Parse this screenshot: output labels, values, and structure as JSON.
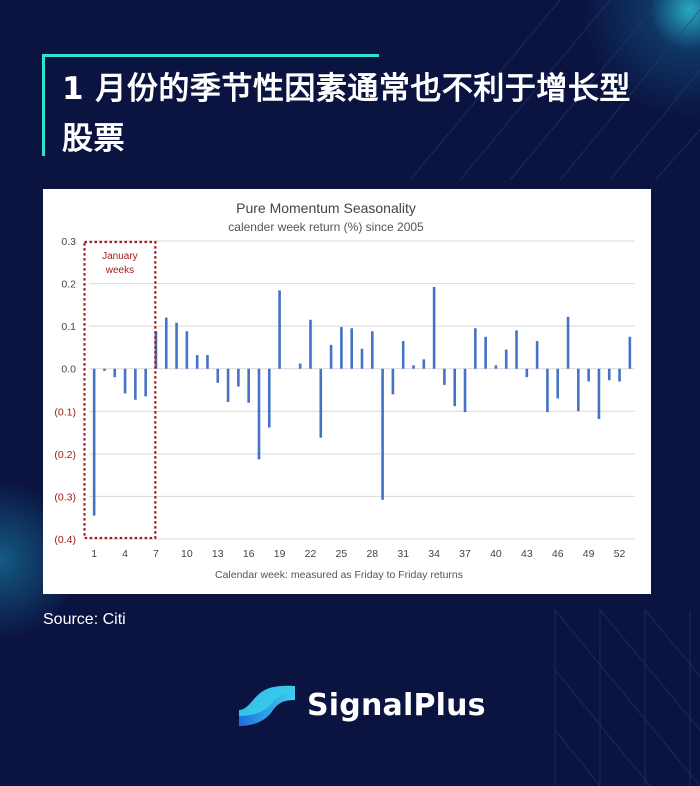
{
  "headline": "1 月份的季节性因素通常也不利于增长型股票",
  "source": "Source: Citi",
  "brand": {
    "name": "SignalPlus",
    "logo_icon": "signalplus-logo-icon"
  },
  "colors": {
    "background": "#0b1340",
    "accent": "#2ee3d0",
    "bar": "#4472c4",
    "highlight": "#a11c1c"
  },
  "chart_data": {
    "type": "bar",
    "title": "Pure Momentum Seasonality",
    "subtitle": "calender week return (%) since 2005",
    "xlabel": "Calendar week: measured as Friday to Friday returns",
    "ylabel": "",
    "ylim": [
      -0.4,
      0.3
    ],
    "yticks": [
      0.3,
      0.2,
      0.1,
      0.0,
      -0.1,
      -0.2,
      -0.3,
      -0.4
    ],
    "ytick_labels": [
      "0.3",
      "0.2",
      "0.1",
      "0.0",
      "(0.1)",
      "(0.2)",
      "(0.3)",
      "(0.4)"
    ],
    "xtick_labels": [
      "1",
      "4",
      "7",
      "10",
      "13",
      "16",
      "19",
      "22",
      "25",
      "28",
      "31",
      "34",
      "37",
      "40",
      "43",
      "46",
      "49",
      "52"
    ],
    "grid": true,
    "categories": [
      1,
      2,
      3,
      4,
      5,
      6,
      7,
      8,
      9,
      10,
      11,
      12,
      13,
      14,
      15,
      16,
      17,
      18,
      19,
      20,
      21,
      22,
      23,
      24,
      25,
      26,
      27,
      28,
      29,
      30,
      31,
      32,
      33,
      34,
      35,
      36,
      37,
      38,
      39,
      40,
      41,
      42,
      43,
      44,
      45,
      46,
      47,
      48,
      49,
      50,
      51,
      52,
      53
    ],
    "values": [
      -0.345,
      -0.005,
      -0.02,
      -0.058,
      -0.073,
      -0.065,
      0.088,
      0.12,
      0.108,
      0.088,
      0.032,
      0.032,
      -0.033,
      -0.078,
      -0.042,
      -0.08,
      -0.213,
      -0.138,
      0.184,
      0.0,
      0.012,
      0.115,
      -0.162,
      0.056,
      0.098,
      0.095,
      0.047,
      0.088,
      -0.308,
      -0.06,
      0.065,
      0.008,
      0.022,
      0.192,
      -0.038,
      -0.088,
      -0.102,
      0.095,
      0.075,
      0.008,
      0.045,
      0.09,
      -0.02,
      0.065,
      -0.102,
      -0.07,
      0.122,
      -0.1,
      -0.03,
      -0.118,
      -0.027,
      -0.03,
      0.075
    ],
    "annotation": {
      "text_line1": "January",
      "text_line2": "weeks",
      "weeks": [
        1,
        6
      ]
    }
  }
}
